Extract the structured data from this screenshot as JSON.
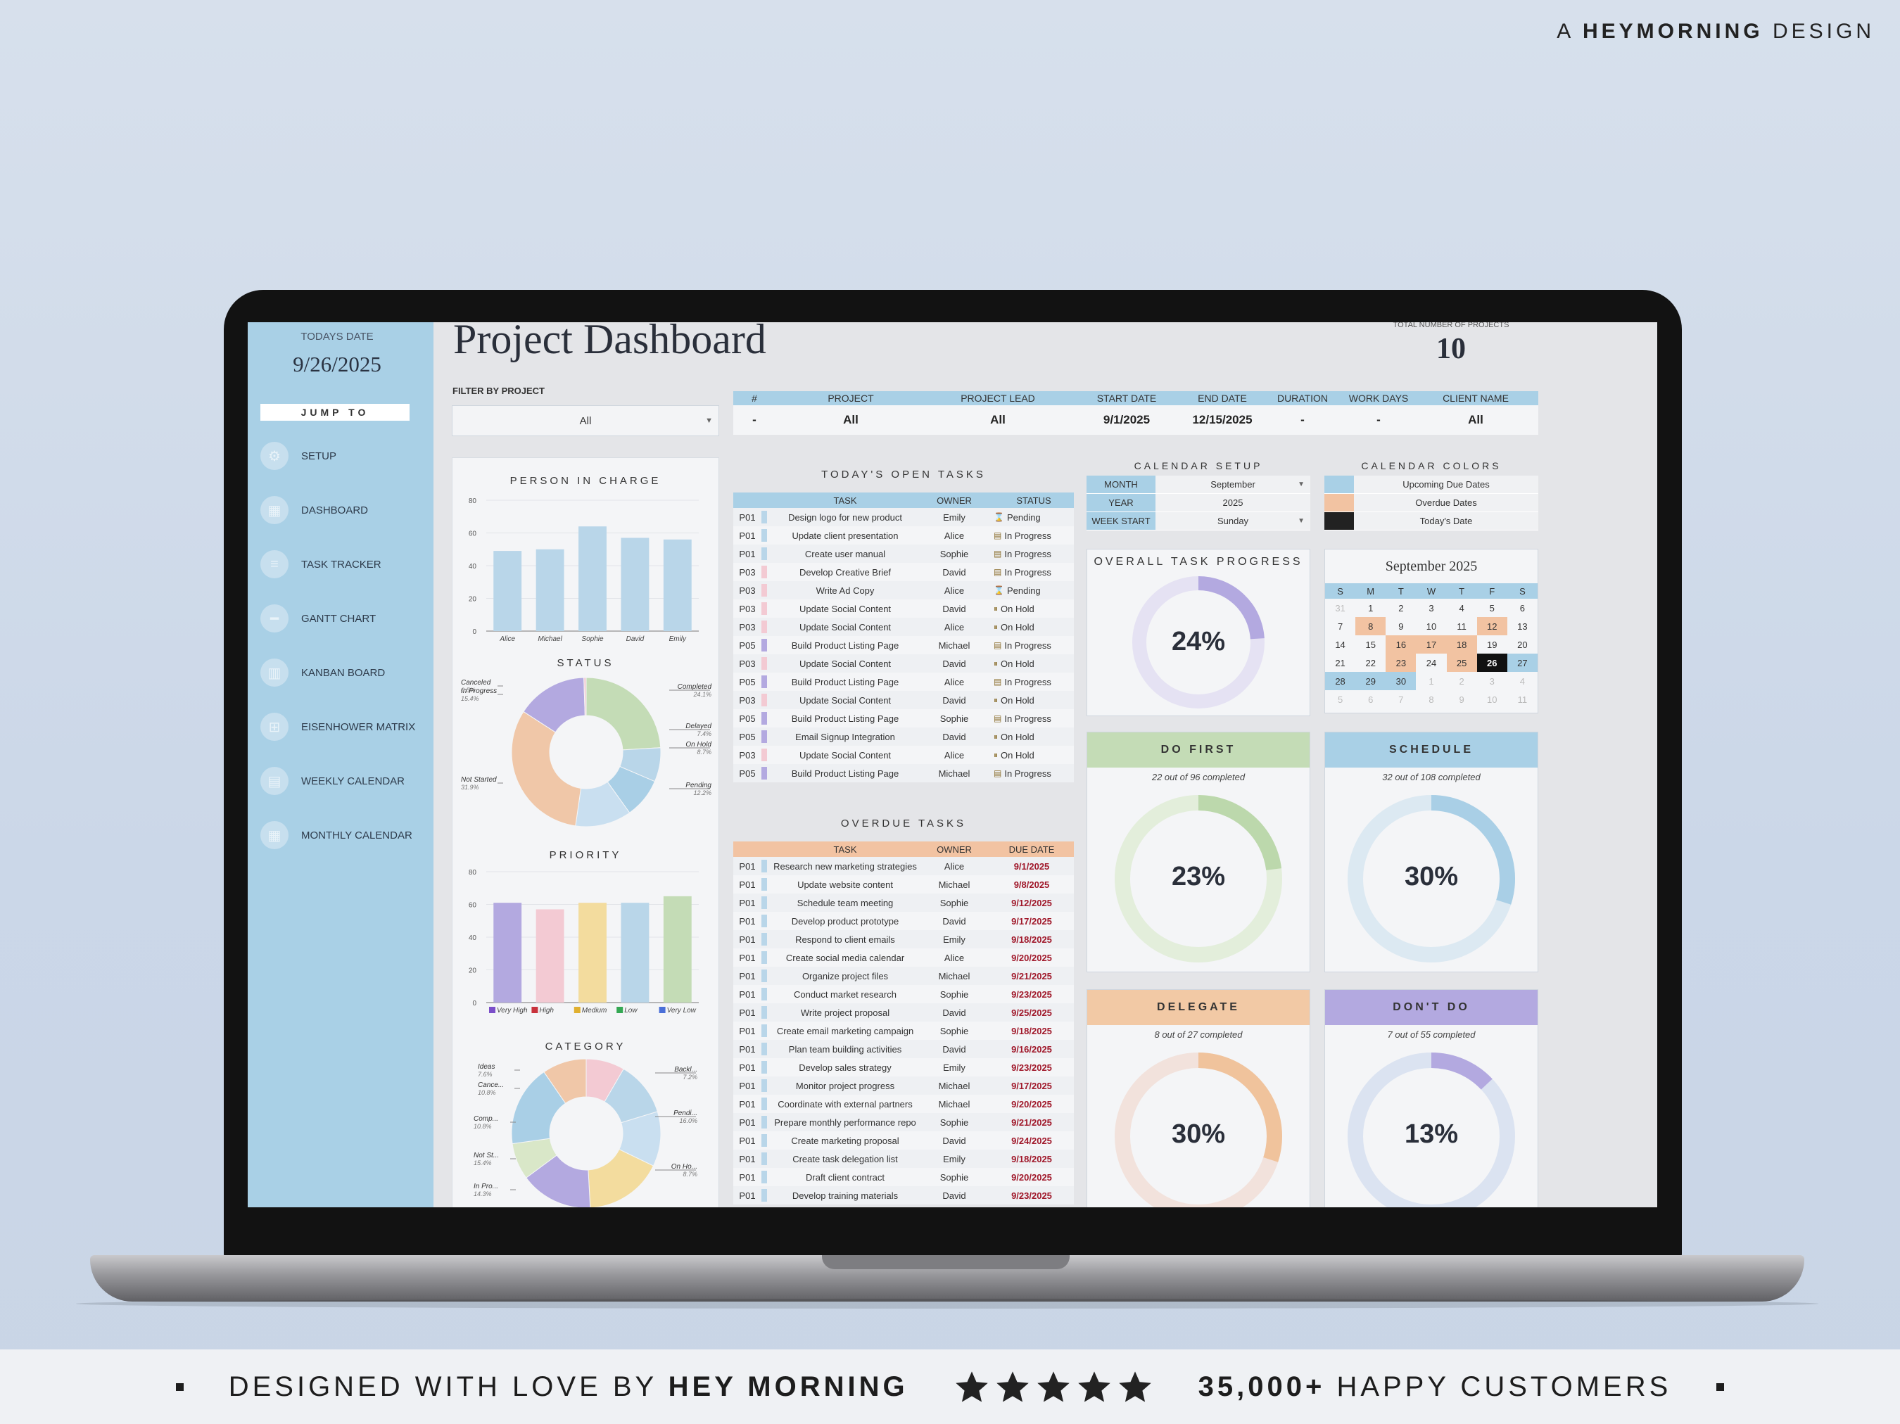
{
  "brand_top": {
    "prefix": "A",
    "name": "HEYMORNING",
    "suffix": "DESIGN"
  },
  "bottom_banner": {
    "left_prefix": "DESIGNED WITH LOVE BY",
    "left_brand": "HEY MORNING",
    "right_count": "35,000+",
    "right_text": "HAPPY CUSTOMERS"
  },
  "sidebar": {
    "date_label": "TODAYS DATE",
    "date_value": "9/26/2025",
    "jump_label": "JUMP TO",
    "items": [
      {
        "label": "SETUP",
        "icon": "gear-icon"
      },
      {
        "label": "DASHBOARD",
        "icon": "dashboard-icon"
      },
      {
        "label": "TASK TRACKER",
        "icon": "list-icon"
      },
      {
        "label": "GANTT CHART",
        "icon": "gantt-icon"
      },
      {
        "label": "KANBAN BOARD",
        "icon": "kanban-icon"
      },
      {
        "label": "EISENHOWER MATRIX",
        "icon": "matrix-icon"
      },
      {
        "label": "WEEKLY CALENDAR",
        "icon": "week-icon"
      },
      {
        "label": "MONTHLY CALENDAR",
        "icon": "calendar-icon"
      }
    ]
  },
  "header": {
    "title": "Project Dashboard",
    "total_label": "TOTAL NUMBER OF PROJECTS",
    "total_value": "10"
  },
  "filter": {
    "label": "FILTER BY PROJECT",
    "value": "All"
  },
  "project_table": {
    "headers": [
      "#",
      "PROJECT",
      "PROJECT LEAD",
      "START DATE",
      "END DATE",
      "DURATION",
      "WORK DAYS",
      "CLIENT NAME"
    ],
    "values": [
      "-",
      "All",
      "All",
      "9/1/2025",
      "12/15/2025",
      "-",
      "-",
      "All"
    ]
  },
  "person_chart": {
    "title": "PERSON IN CHARGE",
    "type": "bar",
    "categories": [
      "Alice",
      "Michael",
      "Sophie",
      "David",
      "Emily"
    ],
    "values": [
      49,
      50,
      64,
      57,
      56
    ],
    "ylim": [
      0,
      80
    ],
    "yticks": [
      "80",
      "60",
      "40",
      "20",
      "0"
    ],
    "color": "#b9d6e9"
  },
  "status_chart": {
    "title": "STATUS",
    "type": "pie",
    "labels": [
      {
        "name": "Completed",
        "pct": "24.1%"
      },
      {
        "name": "Delayed",
        "pct": "7.4%"
      },
      {
        "name": "On Hold",
        "pct": "8.7%"
      },
      {
        "name": "Pending",
        "pct": "12.2%"
      },
      {
        "name": "Not Started",
        "pct": "31.9%"
      },
      {
        "name": "In Progress",
        "pct": "15.4%"
      },
      {
        "name": "Canceled",
        "pct": "0.5%"
      }
    ],
    "values": [
      24.1,
      7.4,
      8.7,
      12.2,
      31.9,
      15.4,
      0.5
    ],
    "colors": [
      "#c4dcb6",
      "#b9d6e9",
      "#a9cfe6",
      "#c9dff0",
      "#f0c7a8",
      "#b3a9e0",
      "#f3cad3"
    ]
  },
  "priority_chart": {
    "title": "PRIORITY",
    "type": "bar",
    "categories": [
      "Very High",
      "High",
      "Medium",
      "Low",
      "Very Low"
    ],
    "values": [
      61,
      57,
      61,
      61,
      65
    ],
    "ylim": [
      0,
      80
    ],
    "yticks": [
      "80",
      "60",
      "40",
      "20",
      "0"
    ],
    "colors": [
      "#b3a9e0",
      "#f3cad3",
      "#f3dc9e",
      "#b9d6e9",
      "#c4dcb6"
    ],
    "legend_colors": [
      "#7b4fc9",
      "#c8323c",
      "#e0b030",
      "#34a853",
      "#4a6fd8"
    ]
  },
  "category_chart": {
    "title": "CATEGORY",
    "type": "pie",
    "labels": [
      {
        "name": "Ideas",
        "pct": "7.6%"
      },
      {
        "name": "Cance...",
        "pct": "10.8%"
      },
      {
        "name": "Comp...",
        "pct": "10.8%"
      },
      {
        "name": "Not St...",
        "pct": "15.4%"
      },
      {
        "name": "In Pro...",
        "pct": "14.3%"
      },
      {
        "name": "Backl...",
        "pct": "7.2%"
      },
      {
        "name": "Pendi...",
        "pct": "16.0%"
      },
      {
        "name": "On Ho...",
        "pct": "8.7%"
      }
    ],
    "values": [
      7.6,
      10.8,
      10.8,
      15.4,
      14.3,
      7.2,
      16.0,
      8.7
    ],
    "colors": [
      "#f3cad3",
      "#b9d6e9",
      "#c9dff0",
      "#f3dc9e",
      "#b3a9e0",
      "#d9e7c8",
      "#a9cfe6",
      "#f0c7a8"
    ]
  },
  "open_tasks": {
    "title": "TODAY'S OPEN TASKS",
    "headers": [
      "TASK",
      "OWNER",
      "STATUS"
    ],
    "rows": [
      {
        "code": "P01",
        "color": "#b9d6e9",
        "task": "Design logo for new product",
        "owner": "Emily",
        "status": "Pending",
        "icon": "hourglass-icon"
      },
      {
        "code": "P01",
        "color": "#b9d6e9",
        "task": "Update client presentation",
        "owner": "Alice",
        "status": "In Progress",
        "icon": "progress-icon"
      },
      {
        "code": "P01",
        "color": "#b9d6e9",
        "task": "Create user manual",
        "owner": "Sophie",
        "status": "In Progress",
        "icon": "progress-icon"
      },
      {
        "code": "P03",
        "color": "#f3cad3",
        "task": "Develop Creative Brief",
        "owner": "David",
        "status": "In Progress",
        "icon": "progress-icon"
      },
      {
        "code": "P03",
        "color": "#f3cad3",
        "task": "Write Ad Copy",
        "owner": "Alice",
        "status": "Pending",
        "icon": "hourglass-icon"
      },
      {
        "code": "P03",
        "color": "#f3cad3",
        "task": "Update Social Content",
        "owner": "David",
        "status": "On Hold",
        "icon": "pause-icon"
      },
      {
        "code": "P03",
        "color": "#f3cad3",
        "task": "Update Social Content",
        "owner": "Alice",
        "status": "On Hold",
        "icon": "pause-icon"
      },
      {
        "code": "P05",
        "color": "#b3a9e0",
        "task": "Build Product Listing Page",
        "owner": "Michael",
        "status": "In Progress",
        "icon": "progress-icon"
      },
      {
        "code": "P03",
        "color": "#f3cad3",
        "task": "Update Social Content",
        "owner": "David",
        "status": "On Hold",
        "icon": "pause-icon"
      },
      {
        "code": "P05",
        "color": "#b3a9e0",
        "task": "Build Product Listing Page",
        "owner": "Alice",
        "status": "In Progress",
        "icon": "progress-icon"
      },
      {
        "code": "P03",
        "color": "#f3cad3",
        "task": "Update Social Content",
        "owner": "David",
        "status": "On Hold",
        "icon": "pause-icon"
      },
      {
        "code": "P05",
        "color": "#b3a9e0",
        "task": "Build Product Listing Page",
        "owner": "Sophie",
        "status": "In Progress",
        "icon": "progress-icon"
      },
      {
        "code": "P05",
        "color": "#b3a9e0",
        "task": "Email Signup Integration",
        "owner": "David",
        "status": "On Hold",
        "icon": "pause-icon"
      },
      {
        "code": "P03",
        "color": "#f3cad3",
        "task": "Update Social Content",
        "owner": "Alice",
        "status": "On Hold",
        "icon": "pause-icon"
      },
      {
        "code": "P05",
        "color": "#b3a9e0",
        "task": "Build Product Listing Page",
        "owner": "Michael",
        "status": "In Progress",
        "icon": "progress-icon"
      }
    ]
  },
  "overdue_tasks": {
    "title": "OVERDUE TASKS",
    "headers": [
      "TASK",
      "OWNER",
      "DUE DATE"
    ],
    "rows": [
      {
        "code": "P01",
        "color": "#b9d6e9",
        "task": "Research new marketing strategies",
        "owner": "Alice",
        "due": "9/1/2025"
      },
      {
        "code": "P01",
        "color": "#b9d6e9",
        "task": "Update website content",
        "owner": "Michael",
        "due": "9/8/2025"
      },
      {
        "code": "P01",
        "color": "#b9d6e9",
        "task": "Schedule team meeting",
        "owner": "Sophie",
        "due": "9/12/2025"
      },
      {
        "code": "P01",
        "color": "#b9d6e9",
        "task": "Develop product prototype",
        "owner": "David",
        "due": "9/17/2025"
      },
      {
        "code": "P01",
        "color": "#b9d6e9",
        "task": "Respond to client emails",
        "owner": "Emily",
        "due": "9/18/2025"
      },
      {
        "code": "P01",
        "color": "#b9d6e9",
        "task": "Create social media calendar",
        "owner": "Alice",
        "due": "9/20/2025"
      },
      {
        "code": "P01",
        "color": "#b9d6e9",
        "task": "Organize project files",
        "owner": "Michael",
        "due": "9/21/2025"
      },
      {
        "code": "P01",
        "color": "#b9d6e9",
        "task": "Conduct market research",
        "owner": "Sophie",
        "due": "9/23/2025"
      },
      {
        "code": "P01",
        "color": "#b9d6e9",
        "task": "Write project proposal",
        "owner": "David",
        "due": "9/25/2025"
      },
      {
        "code": "P01",
        "color": "#b9d6e9",
        "task": "Create email marketing campaign",
        "owner": "Sophie",
        "due": "9/18/2025"
      },
      {
        "code": "P01",
        "color": "#b9d6e9",
        "task": "Plan team building activities",
        "owner": "David",
        "due": "9/16/2025"
      },
      {
        "code": "P01",
        "color": "#b9d6e9",
        "task": "Develop sales strategy",
        "owner": "Emily",
        "due": "9/23/2025"
      },
      {
        "code": "P01",
        "color": "#b9d6e9",
        "task": "Monitor project progress",
        "owner": "Michael",
        "due": "9/17/2025"
      },
      {
        "code": "P01",
        "color": "#b9d6e9",
        "task": "Coordinate with external partners",
        "owner": "Michael",
        "due": "9/20/2025"
      },
      {
        "code": "P01",
        "color": "#b9d6e9",
        "task": "Prepare monthly performance repo",
        "owner": "Sophie",
        "due": "9/21/2025"
      },
      {
        "code": "P01",
        "color": "#b9d6e9",
        "task": "Create marketing proposal",
        "owner": "David",
        "due": "9/24/2025"
      },
      {
        "code": "P01",
        "color": "#b9d6e9",
        "task": "Create task delegation list",
        "owner": "Emily",
        "due": "9/18/2025"
      },
      {
        "code": "P01",
        "color": "#b9d6e9",
        "task": "Draft client contract",
        "owner": "Sophie",
        "due": "9/20/2025"
      },
      {
        "code": "P01",
        "color": "#b9d6e9",
        "task": "Develop training materials",
        "owner": "David",
        "due": "9/23/2025"
      }
    ]
  },
  "calendar_setup": {
    "title": "CALENDAR SETUP",
    "rows": [
      {
        "key": "MONTH",
        "value": "September",
        "dropdown": true
      },
      {
        "key": "YEAR",
        "value": "2025",
        "dropdown": false
      },
      {
        "key": "WEEK START",
        "value": "Sunday",
        "dropdown": true
      }
    ]
  },
  "calendar_colors": {
    "title": "CALENDAR COLORS",
    "rows": [
      {
        "label": "Upcoming Due Dates",
        "color": "#a9d0e6"
      },
      {
        "label": "Overdue Dates",
        "color": "#f2c3a2"
      },
      {
        "label": "Today's Date",
        "color": "#222222"
      }
    ]
  },
  "overall_progress": {
    "title": "OVERALL TASK PROGRESS",
    "pct_text": "24%",
    "value": 0.24,
    "color": "#b3a9e0",
    "track": "#e5e2f3"
  },
  "matrix": [
    {
      "title": "DO FIRST",
      "sub": "22 out of 96 completed",
      "pct_text": "23%",
      "value": 0.23,
      "hdr": "#c4dcb6",
      "color": "#bcd8ac",
      "track": "#e3eedb"
    },
    {
      "title": "SCHEDULE",
      "sub": "32 out of 108 completed",
      "pct_text": "30%",
      "value": 0.3,
      "hdr": "#a9d0e6",
      "color": "#a9cfe6",
      "track": "#dce9f2"
    },
    {
      "title": "DELEGATE",
      "sub": "8 out of 27 completed",
      "pct_text": "30%",
      "value": 0.3,
      "hdr": "#f2c9a5",
      "color": "#f0c39c",
      "track": "#f2e2dc"
    },
    {
      "title": "DON'T DO",
      "sub": "7 out of 55 completed",
      "pct_text": "13%",
      "value": 0.13,
      "hdr": "#b3a9e0",
      "color": "#b3a9e0",
      "track": "#dbe3f1"
    }
  ],
  "calendar": {
    "title": "September 2025",
    "dow": [
      "S",
      "M",
      "T",
      "W",
      "T",
      "F",
      "S"
    ],
    "weeks": [
      [
        {
          "d": "31",
          "k": "o"
        },
        {
          "d": "1",
          "k": ""
        },
        {
          "d": "2",
          "k": ""
        },
        {
          "d": "3",
          "k": ""
        },
        {
          "d": "4",
          "k": ""
        },
        {
          "d": "5",
          "k": ""
        },
        {
          "d": "6",
          "k": ""
        }
      ],
      [
        {
          "d": "7",
          "k": ""
        },
        {
          "d": "8",
          "k": "od"
        },
        {
          "d": "9",
          "k": ""
        },
        {
          "d": "10",
          "k": ""
        },
        {
          "d": "11",
          "k": ""
        },
        {
          "d": "12",
          "k": "od"
        },
        {
          "d": "13",
          "k": ""
        }
      ],
      [
        {
          "d": "14",
          "k": ""
        },
        {
          "d": "15",
          "k": ""
        },
        {
          "d": "16",
          "k": "od"
        },
        {
          "d": "17",
          "k": "od"
        },
        {
          "d": "18",
          "k": "od"
        },
        {
          "d": "19",
          "k": ""
        },
        {
          "d": "20",
          "k": ""
        }
      ],
      [
        {
          "d": "21",
          "k": ""
        },
        {
          "d": "22",
          "k": ""
        },
        {
          "d": "23",
          "k": "od"
        },
        {
          "d": "24",
          "k": ""
        },
        {
          "d": "25",
          "k": "od"
        },
        {
          "d": "26",
          "k": "td"
        },
        {
          "d": "27",
          "k": "up"
        }
      ],
      [
        {
          "d": "28",
          "k": "up"
        },
        {
          "d": "29",
          "k": "up"
        },
        {
          "d": "30",
          "k": "up"
        },
        {
          "d": "1",
          "k": "o"
        },
        {
          "d": "2",
          "k": "o"
        },
        {
          "d": "3",
          "k": "o"
        },
        {
          "d": "4",
          "k": "o"
        }
      ],
      [
        {
          "d": "5",
          "k": "o"
        },
        {
          "d": "6",
          "k": "o"
        },
        {
          "d": "7",
          "k": "o"
        },
        {
          "d": "8",
          "k": "o"
        },
        {
          "d": "9",
          "k": "o"
        },
        {
          "d": "10",
          "k": "o"
        },
        {
          "d": "11",
          "k": "o"
        }
      ]
    ]
  }
}
